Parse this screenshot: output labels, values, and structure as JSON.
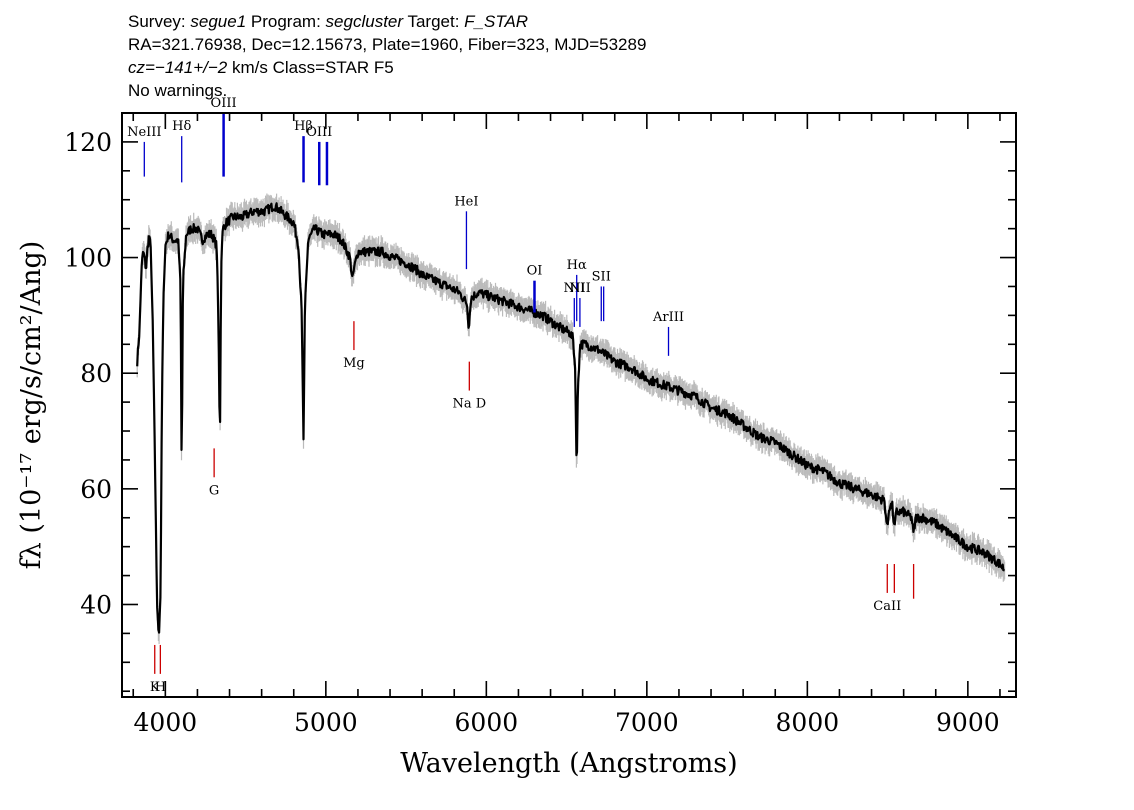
{
  "header": {
    "line1": {
      "survey_label": "Survey:",
      "survey": "segue1",
      "program_label": "Program:",
      "program": "segcluster",
      "target_label": "Target:",
      "target": "F_STAR"
    },
    "line2": "RA=321.76938, Dec=12.15673, Plate=1960, Fiber=323, MJD=53289",
    "line3": {
      "cz": "cz=−141+/−2",
      "rest": "km/s Class=STAR F5"
    },
    "line4": "No warnings."
  },
  "colors": {
    "flux": "#000000",
    "error": "#bbbbbb",
    "emission": "#0000cc",
    "absorption": "#cc0000"
  },
  "chart_data": {
    "type": "line",
    "xlabel": "Wavelength (Angstroms)",
    "ylabel": "fλ (10⁻¹⁷ erg/s/cm²/Ang)",
    "xlim": [
      3730,
      9300
    ],
    "ylim": [
      24,
      125
    ],
    "xticks": [
      4000,
      5000,
      6000,
      7000,
      8000,
      9000
    ],
    "yticks": [
      40,
      60,
      80,
      100,
      120
    ],
    "grid": false,
    "series": [
      {
        "type": "line",
        "x": [
          3825,
          3840,
          3850,
          3860,
          3870,
          3880,
          3890,
          3900,
          3910,
          3920,
          3930,
          3940,
          3950,
          3960,
          3970,
          3980,
          3990,
          4000,
          4020,
          4050,
          4080,
          4095,
          4102,
          4110,
          4130,
          4160,
          4200,
          4230,
          4260,
          4290,
          4320,
          4330,
          4340,
          4345,
          4350,
          4360,
          4380,
          4420,
          4480,
          4550,
          4620,
          4680,
          4720,
          4760,
          4800,
          4830,
          4850,
          4861,
          4870,
          4890,
          4930,
          4980,
          5050,
          5100,
          5150,
          5167,
          5175,
          5200,
          5270,
          5350,
          5420,
          5500,
          5560,
          5600,
          5680,
          5760,
          5830,
          5880,
          5890,
          5896,
          5905,
          5950,
          6050,
          6150,
          6250,
          6350,
          6450,
          6520,
          6540,
          6555,
          6563,
          6570,
          6585,
          6620,
          6700,
          6800,
          6900,
          7000,
          7100,
          7200,
          7300,
          7400,
          7500,
          7600,
          7700,
          7800,
          7900,
          8000,
          8100,
          8200,
          8300,
          8400,
          8480,
          8498,
          8510,
          8530,
          8542,
          8555,
          8600,
          8650,
          8662,
          8675,
          8720,
          8800,
          8900,
          9000,
          9100,
          9150,
          9200,
          9230
        ],
        "y": [
          82,
          88,
          97,
          101,
          100,
          98,
          102,
          104,
          101,
          90,
          75,
          55,
          38,
          35,
          42,
          78,
          95,
          102,
          104,
          103,
          103,
          95,
          62,
          96,
          104,
          105,
          105,
          103,
          104,
          104,
          102,
          90,
          68,
          88,
          102,
          105,
          106,
          107,
          107,
          108,
          108,
          109,
          108,
          107,
          106,
          102,
          90,
          68,
          92,
          103,
          105,
          104,
          104,
          103,
          100,
          96,
          98,
          101,
          101,
          101,
          100,
          99,
          98,
          97,
          96,
          95,
          94,
          92,
          88,
          90,
          93,
          94,
          93,
          92,
          91,
          90,
          88,
          87,
          86,
          80,
          61,
          78,
          85,
          85,
          84,
          82,
          81,
          79,
          78,
          77,
          76,
          74,
          73,
          71,
          69,
          68,
          66,
          64,
          63,
          61,
          60,
          59,
          58,
          53,
          57,
          57,
          53,
          56,
          56,
          55,
          52,
          55,
          55,
          54,
          52,
          50,
          49,
          48,
          47,
          46
        ]
      }
    ],
    "lines": [
      {
        "label": "NeIII",
        "x": 3869,
        "y": [
          114,
          120
        ],
        "kind": "emission"
      },
      {
        "label": "Hδ",
        "x": 4102,
        "y": [
          113,
          121
        ],
        "kind": "emission"
      },
      {
        "label": "OIII",
        "x": 4363,
        "y": [
          114,
          125
        ],
        "kind": "emission"
      },
      {
        "label": "Hβ",
        "x": 4861,
        "y": [
          113,
          121
        ],
        "kind": "emission"
      },
      {
        "label": "OIII",
        "x": 4959,
        "y": [
          112.5,
          120
        ],
        "kind": "emission"
      },
      {
        "label": "",
        "x": 5007,
        "y": [
          112.5,
          120
        ],
        "kind": "emission"
      },
      {
        "label": "HeI",
        "x": 5876,
        "y": [
          98,
          108
        ],
        "kind": "emission"
      },
      {
        "label": "OI",
        "x": 6300,
        "y": [
          90.5,
          96
        ],
        "kind": "emission"
      },
      {
        "label": "NII",
        "x": 6548,
        "y": [
          88,
          93
        ],
        "kind": "emission"
      },
      {
        "label": "Hα",
        "x": 6563,
        "y": [
          89,
          97
        ],
        "kind": "emission"
      },
      {
        "label": "NII",
        "x": 6583,
        "y": [
          88,
          93
        ],
        "kind": "emission"
      },
      {
        "label": "SII",
        "x": 6716,
        "y": [
          89,
          95
        ],
        "kind": "emission"
      },
      {
        "label": "",
        "x": 6731,
        "y": [
          89,
          95
        ],
        "kind": "emission"
      },
      {
        "label": "ArIII",
        "x": 7135,
        "y": [
          83,
          88
        ],
        "kind": "emission"
      },
      {
        "label": "K",
        "x": 3934,
        "y": [
          28,
          33
        ],
        "kind": "absorption"
      },
      {
        "label": "H",
        "x": 3969,
        "y": [
          28,
          33
        ],
        "kind": "absorption"
      },
      {
        "label": "G",
        "x": 4304,
        "y": [
          62,
          67
        ],
        "kind": "absorption"
      },
      {
        "label": "Mg",
        "x": 5175,
        "y": [
          84,
          89
        ],
        "kind": "absorption"
      },
      {
        "label": "Na D",
        "x": 5894,
        "y": [
          77,
          82
        ],
        "kind": "absorption"
      },
      {
        "label": "CaII",
        "x": 8498,
        "y": [
          42,
          47
        ],
        "kind": "absorption"
      },
      {
        "label": "",
        "x": 8542,
        "y": [
          42,
          47
        ],
        "kind": "absorption"
      },
      {
        "label": "",
        "x": 8662,
        "y": [
          41,
          47
        ],
        "kind": "absorption"
      }
    ]
  }
}
